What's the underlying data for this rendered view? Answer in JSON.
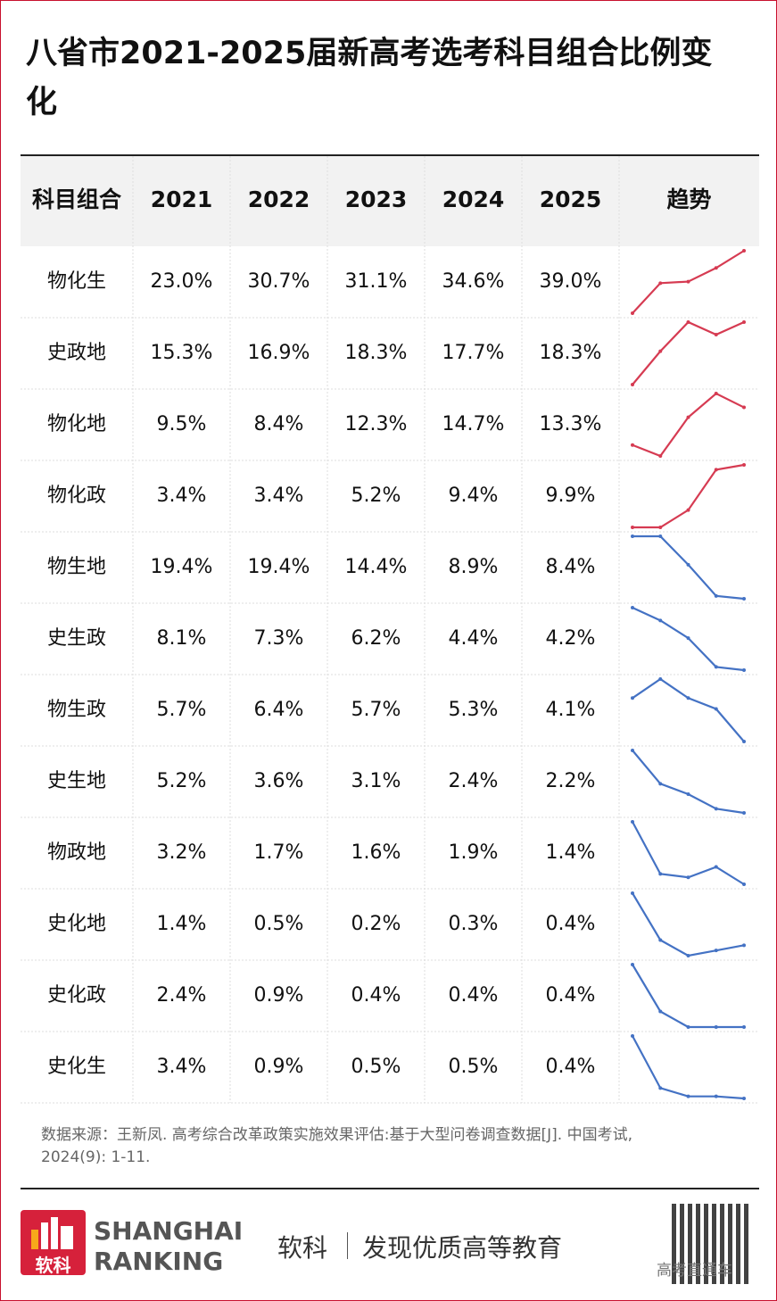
{
  "title": "八省市2021-2025届新高考选考科目组合比例变化",
  "table": {
    "header": [
      "科目组合",
      "2021",
      "2022",
      "2023",
      "2024",
      "2025",
      "趋势"
    ],
    "rows": [
      {
        "label": "物化生",
        "values": [
          23.0,
          30.7,
          31.1,
          34.6,
          39.0
        ],
        "value_labels": [
          "23.0%",
          "30.7%",
          "31.1%",
          "34.6%",
          "39.0%"
        ],
        "color": "#d63b52"
      },
      {
        "label": "史政地",
        "values": [
          15.3,
          16.9,
          18.3,
          17.7,
          18.3
        ],
        "value_labels": [
          "15.3%",
          "16.9%",
          "18.3%",
          "17.7%",
          "18.3%"
        ],
        "color": "#d63b52"
      },
      {
        "label": "物化地",
        "values": [
          9.5,
          8.4,
          12.3,
          14.7,
          13.3
        ],
        "value_labels": [
          "9.5%",
          "8.4%",
          "12.3%",
          "14.7%",
          "13.3%"
        ],
        "color": "#d63b52"
      },
      {
        "label": "物化政",
        "values": [
          3.4,
          3.4,
          5.2,
          9.4,
          9.9
        ],
        "value_labels": [
          "3.4%",
          "3.4%",
          "5.2%",
          "9.4%",
          "9.9%"
        ],
        "color": "#d63b52"
      },
      {
        "label": "物生地",
        "values": [
          19.4,
          19.4,
          14.4,
          8.9,
          8.4
        ],
        "value_labels": [
          "19.4%",
          "19.4%",
          "14.4%",
          "8.9%",
          "8.4%"
        ],
        "color": "#4472c4"
      },
      {
        "label": "史生政",
        "values": [
          8.1,
          7.3,
          6.2,
          4.4,
          4.2
        ],
        "value_labels": [
          "8.1%",
          "7.3%",
          "6.2%",
          "4.4%",
          "4.2%"
        ],
        "color": "#4472c4"
      },
      {
        "label": "物生政",
        "values": [
          5.7,
          6.4,
          5.7,
          5.3,
          4.1
        ],
        "value_labels": [
          "5.7%",
          "6.4%",
          "5.7%",
          "5.3%",
          "4.1%"
        ],
        "color": "#4472c4"
      },
      {
        "label": "史生地",
        "values": [
          5.2,
          3.6,
          3.1,
          2.4,
          2.2
        ],
        "value_labels": [
          "5.2%",
          "3.6%",
          "3.1%",
          "2.4%",
          "2.2%"
        ],
        "color": "#4472c4"
      },
      {
        "label": "物政地",
        "values": [
          3.2,
          1.7,
          1.6,
          1.9,
          1.4
        ],
        "value_labels": [
          "3.2%",
          "1.7%",
          "1.6%",
          "1.9%",
          "1.4%"
        ],
        "color": "#4472c4"
      },
      {
        "label": "史化地",
        "values": [
          1.4,
          0.5,
          0.2,
          0.3,
          0.4
        ],
        "value_labels": [
          "1.4%",
          "0.5%",
          "0.2%",
          "0.3%",
          "0.4%"
        ],
        "color": "#4472c4"
      },
      {
        "label": "史化政",
        "values": [
          2.4,
          0.9,
          0.4,
          0.4,
          0.4
        ],
        "value_labels": [
          "2.4%",
          "0.9%",
          "0.4%",
          "0.4%",
          "0.4%"
        ],
        "color": "#4472c4"
      },
      {
        "label": "史化生",
        "values": [
          3.4,
          0.9,
          0.5,
          0.5,
          0.4
        ],
        "value_labels": [
          "3.4%",
          "0.9%",
          "0.5%",
          "0.5%",
          "0.4%"
        ],
        "color": "#4472c4"
      }
    ]
  },
  "source": [
    "数据来源：王新凤. 高考综合改革政策实施效果评估:基于大型问卷调查数据[J]. 中国考试,",
    "2024(9): 1-11."
  ],
  "footer": {
    "logo_text": "软科",
    "brand": [
      "SHANGHAI",
      "RANKING"
    ],
    "slogan_name": "软科",
    "slogan": "发现优质高等教育",
    "watermark": "高考直通车"
  }
}
